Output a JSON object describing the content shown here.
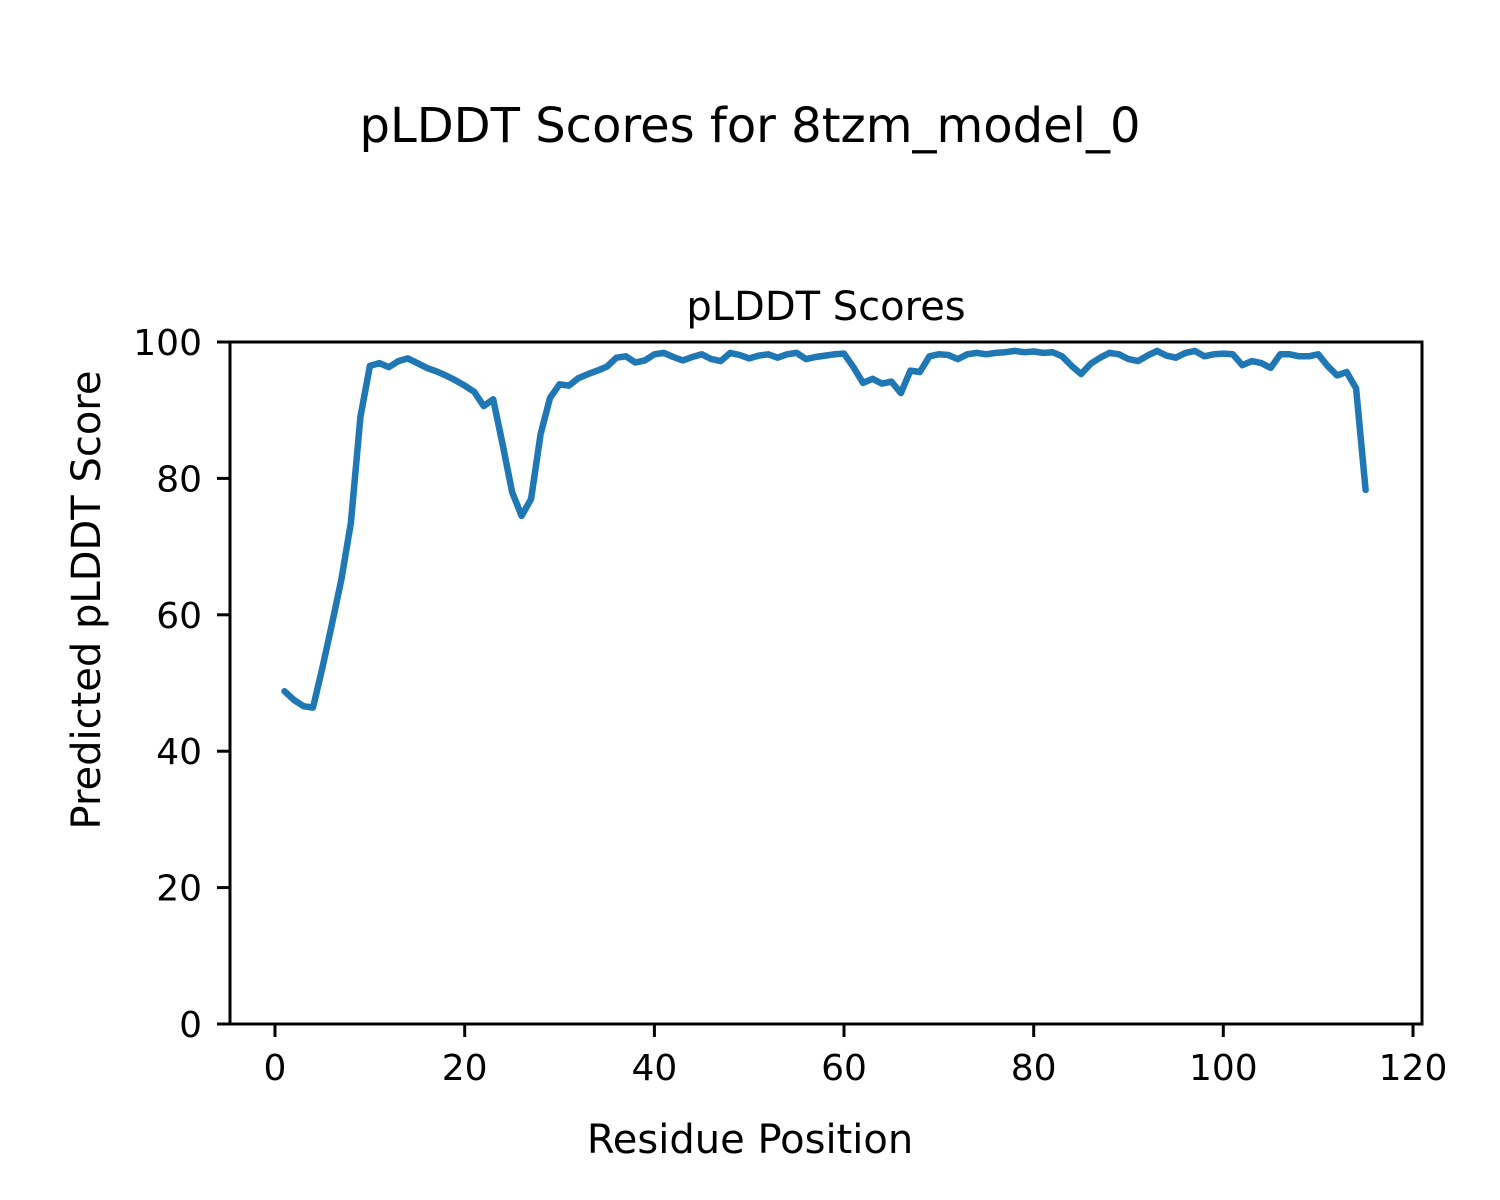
{
  "figure": {
    "suptitle": "pLDDT Scores for 8tzm_model_0",
    "axes_title": "pLDDT Scores",
    "xlabel": "Residue Position",
    "ylabel": "Predicted pLDDT Score"
  },
  "chart_data": {
    "type": "line",
    "title": "pLDDT Scores",
    "suptitle": "pLDDT Scores for 8tzm_model_0",
    "xlabel": "Residue Position",
    "ylabel": "Predicted pLDDT Score",
    "xlim": [
      -4.75,
      120.95
    ],
    "ylim": [
      0,
      100
    ],
    "xticks": [
      0,
      20,
      40,
      60,
      80,
      100,
      120
    ],
    "yticks": [
      0,
      20,
      40,
      60,
      80,
      100
    ],
    "grid": false,
    "legend": "none",
    "line_color": "#1f77b4",
    "series": [
      {
        "name": "pLDDT",
        "x": [
          1,
          2,
          3,
          4,
          5,
          6,
          7,
          8,
          9,
          10,
          11,
          12,
          13,
          14,
          15,
          16,
          17,
          18,
          19,
          20,
          21,
          22,
          23,
          24,
          25,
          26,
          27,
          28,
          29,
          30,
          31,
          32,
          33,
          34,
          35,
          36,
          37,
          38,
          39,
          40,
          41,
          42,
          43,
          44,
          45,
          46,
          47,
          48,
          49,
          50,
          51,
          52,
          53,
          54,
          55,
          56,
          57,
          58,
          59,
          60,
          61,
          62,
          63,
          64,
          65,
          66,
          67,
          68,
          69,
          70,
          71,
          72,
          73,
          74,
          75,
          76,
          77,
          78,
          79,
          80,
          81,
          82,
          83,
          84,
          85,
          86,
          87,
          88,
          89,
          90,
          91,
          92,
          93,
          94,
          95,
          96,
          97,
          98,
          99,
          100,
          101,
          102,
          103,
          104,
          105,
          106,
          107,
          108,
          109,
          110,
          111,
          112,
          113,
          114,
          115
        ],
        "y": [
          48.8,
          47.5,
          46.6,
          46.4,
          52.3,
          58.6,
          65.2,
          73.5,
          89.0,
          96.5,
          96.9,
          96.3,
          97.2,
          97.6,
          96.9,
          96.2,
          95.7,
          95.1,
          94.4,
          93.6,
          92.7,
          90.6,
          91.6,
          85.0,
          78.0,
          74.5,
          77.0,
          86.5,
          91.8,
          93.8,
          93.6,
          94.7,
          95.3,
          95.8,
          96.4,
          97.7,
          97.9,
          97.0,
          97.3,
          98.2,
          98.4,
          97.8,
          97.3,
          97.8,
          98.2,
          97.5,
          97.2,
          98.4,
          98.1,
          97.6,
          98.0,
          98.2,
          97.7,
          98.2,
          98.4,
          97.5,
          97.8,
          98.0,
          98.2,
          98.3,
          96.3,
          94.0,
          94.6,
          93.9,
          94.2,
          92.5,
          95.8,
          95.6,
          97.9,
          98.2,
          98.1,
          97.5,
          98.2,
          98.4,
          98.2,
          98.4,
          98.5,
          98.7,
          98.5,
          98.6,
          98.4,
          98.5,
          97.9,
          96.5,
          95.3,
          96.8,
          97.7,
          98.4,
          98.2,
          97.5,
          97.2,
          98.0,
          98.7,
          98.0,
          97.7,
          98.4,
          98.7,
          97.9,
          98.2,
          98.3,
          98.2,
          96.6,
          97.2,
          96.9,
          96.2,
          98.2,
          98.2,
          97.9,
          97.9,
          98.2,
          96.5,
          95.1,
          95.6,
          93.2,
          78.3
        ]
      }
    ]
  }
}
